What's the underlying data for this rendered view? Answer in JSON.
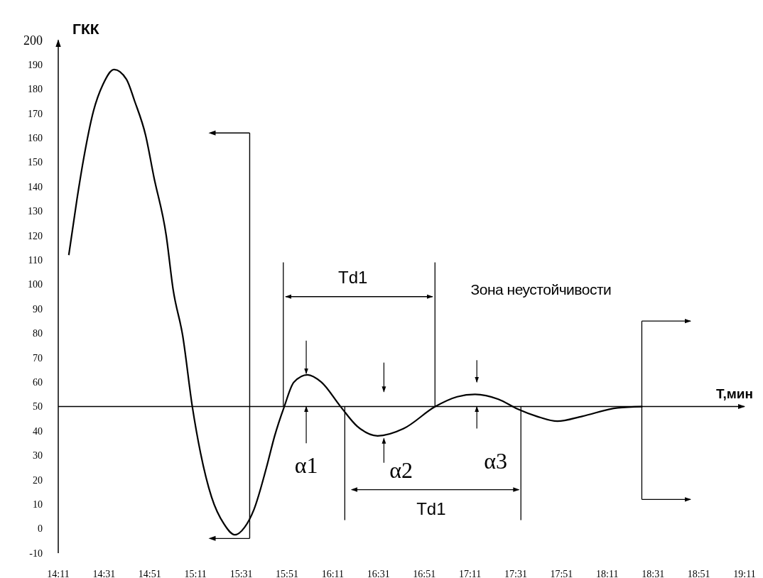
{
  "chart_data": {
    "type": "line",
    "xlabel": "T,мин",
    "ylabel": "ГКК",
    "x": [
      14.26,
      14.32,
      14.37,
      14.44,
      14.51,
      14.59,
      14.68,
      14.74,
      14.82,
      14.88,
      14.97,
      15.02,
      15.09,
      15.16,
      15.22,
      15.3,
      15.39,
      15.47,
      15.54,
      15.61,
      15.7,
      15.76,
      15.83,
      15.9,
      16.0,
      16.1,
      16.24,
      16.36,
      16.51,
      16.7,
      16.93,
      17.09,
      17.22,
      17.39,
      17.53,
      17.67,
      17.82,
      18.0,
      18.26,
      18.44
    ],
    "series": [
      {
        "color": "#000000",
        "values": [
          112,
          135,
          152,
          171,
          182,
          188,
          184,
          175,
          161,
          144,
          120,
          98,
          79,
          50,
          31,
          13,
          2,
          -2.5,
          0.5,
          8,
          25,
          38,
          50,
          60,
          63,
          60,
          50,
          42,
          38,
          41,
          50,
          54,
          55,
          53,
          49,
          46,
          44,
          46,
          49.5,
          50
        ]
      }
    ],
    "xlim": [
      14.1833,
      19.1833
    ],
    "ylim": [
      -10,
      200
    ],
    "xticks": [
      {
        "value": 14.1833,
        "label": "14:11"
      },
      {
        "value": 14.5167,
        "label": "14:31"
      },
      {
        "value": 14.85,
        "label": "14:51"
      },
      {
        "value": 15.1833,
        "label": "15:11"
      },
      {
        "value": 15.5167,
        "label": "15:31"
      },
      {
        "value": 15.85,
        "label": "15:51"
      },
      {
        "value": 16.1833,
        "label": "16:11"
      },
      {
        "value": 16.5167,
        "label": "16:31"
      },
      {
        "value": 16.85,
        "label": "16:51"
      },
      {
        "value": 17.1833,
        "label": "17:11"
      },
      {
        "value": 17.5167,
        "label": "17:31"
      },
      {
        "value": 17.85,
        "label": "17:51"
      },
      {
        "value": 18.1833,
        "label": "18:11"
      },
      {
        "value": 18.5167,
        "label": "18:31"
      },
      {
        "value": 18.85,
        "label": "18:51"
      },
      {
        "value": 19.1833,
        "label": "19:11"
      }
    ],
    "yticks": [
      -10,
      0,
      10,
      20,
      30,
      40,
      50,
      60,
      70,
      80,
      90,
      100,
      110,
      120,
      130,
      140,
      150,
      160,
      170,
      180,
      190,
      200
    ],
    "ref_lines": [
      {
        "axis": "y",
        "value": 50,
        "color": "#000000"
      }
    ],
    "annotations": [
      "Td1",
      "Td1",
      {
        "text": "α1",
        "x": 15.99,
        "y": 50
      },
      {
        "text": "α2",
        "x": 16.51,
        "y": 38
      },
      {
        "text": "α3",
        "x": 17.22,
        "y": 55
      },
      "Зона неустойчивости"
    ],
    "marker": "none",
    "line_style": "solid",
    "grid": false
  }
}
